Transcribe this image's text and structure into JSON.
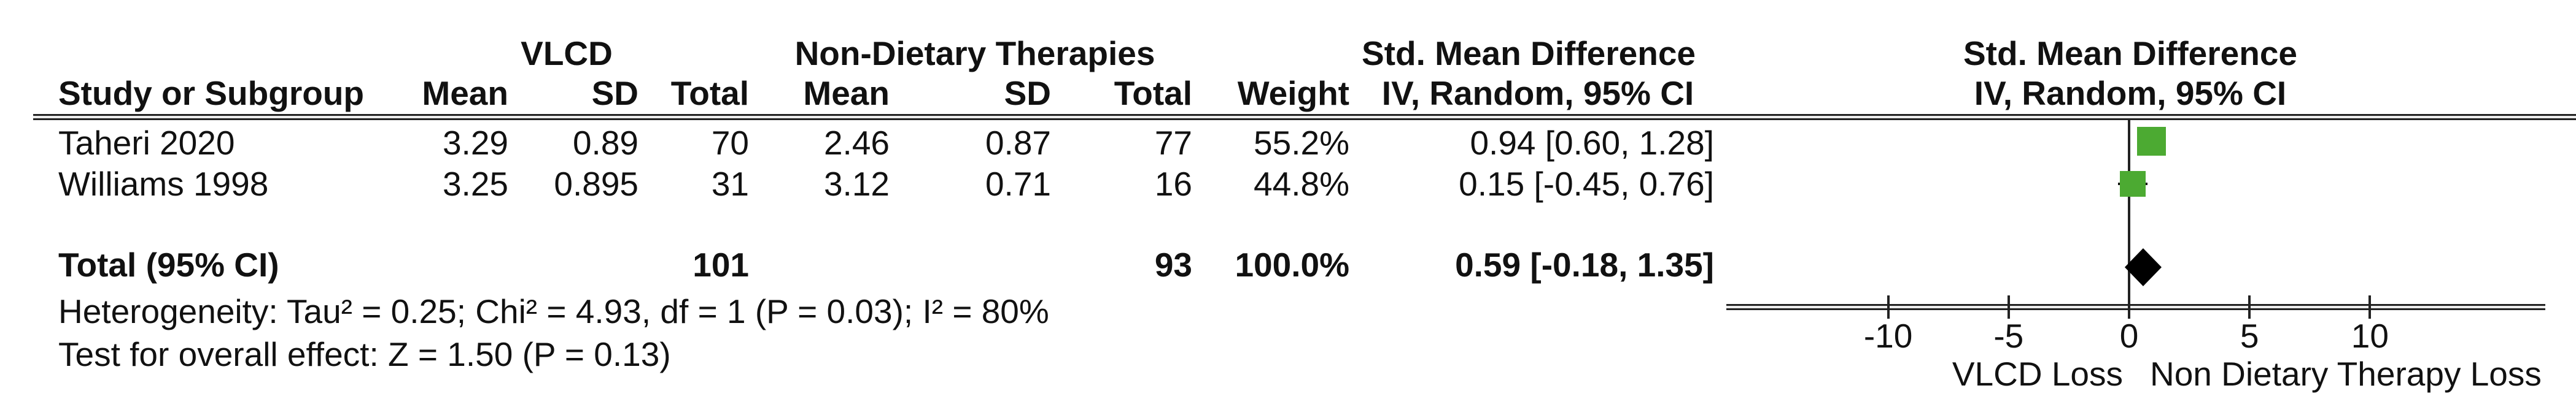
{
  "colors": {
    "marker_green": "#4caa32",
    "diamond_black": "#000000",
    "line_dark": "#222222",
    "text": "#111111",
    "background": "#ffffff"
  },
  "table": {
    "group_headers": {
      "vlcd": "VLCD",
      "non_dietary": "Non-Dietary Therapies",
      "smd": "Std. Mean Difference"
    },
    "col_headers": {
      "study": "Study or Subgroup",
      "mean1": "Mean",
      "sd1": "SD",
      "total1": "Total",
      "mean2": "Mean",
      "sd2": "SD",
      "total2": "Total",
      "weight": "Weight",
      "iv": "IV, Random, 95% CI"
    },
    "rows": [
      {
        "name": "Taheri 2020",
        "mean1": "3.29",
        "sd1": "0.89",
        "total1": "70",
        "mean2": "2.46",
        "sd2": "0.87",
        "total2": "77",
        "weight": "55.2%",
        "ci": "0.94 [0.60, 1.28]"
      },
      {
        "name": "Williams 1998",
        "mean1": "3.25",
        "sd1": "0.895",
        "total1": "31",
        "mean2": "3.12",
        "sd2": "0.71",
        "total2": "16",
        "weight": "44.8%",
        "ci": "0.15 [-0.45, 0.76]"
      }
    ],
    "total_row": {
      "label": "Total (95% CI)",
      "total1": "101",
      "total2": "93",
      "weight": "100.0%",
      "ci": "0.59 [-0.18, 1.35]"
    },
    "footnotes": {
      "heterogeneity": "Heterogeneity: Tau² = 0.25; Chi² = 4.93, df = 1 (P = 0.03); I² = 80%",
      "overall_effect": "Test for overall effect: Z = 1.50 (P = 0.13)"
    }
  },
  "plot": {
    "header_line1": "Std. Mean Difference",
    "header_line2": "IV, Random, 95% CI",
    "axis_label_left": "VLCD Loss",
    "axis_label_right": "Non Dietary Therapy Loss"
  },
  "chart_data": {
    "type": "forest",
    "title": "",
    "effect_measure": "Std. Mean Difference",
    "model": "IV, Random, 95% CI",
    "x_axis": {
      "ticks": [
        -10,
        -5,
        0,
        5,
        10
      ],
      "range_shown": [
        -16.5,
        17.3
      ],
      "label_left": "VLCD Loss",
      "label_right": "Non Dietary Therapy Loss"
    },
    "studies": [
      {
        "name": "Taheri 2020",
        "mean1": 3.29,
        "sd1": 0.89,
        "n1": 70,
        "mean2": 2.46,
        "sd2": 0.87,
        "n2": 77,
        "weight_pct": 55.2,
        "smd": 0.94,
        "ci_low": 0.6,
        "ci_high": 1.28
      },
      {
        "name": "Williams 1998",
        "mean1": 3.25,
        "sd1": 0.895,
        "n1": 31,
        "mean2": 3.12,
        "sd2": 0.71,
        "n2": 16,
        "weight_pct": 44.8,
        "smd": 0.15,
        "ci_low": -0.45,
        "ci_high": 0.76
      }
    ],
    "total": {
      "label": "Total (95% CI)",
      "n1": 101,
      "n2": 93,
      "weight_pct": 100.0,
      "smd": 0.59,
      "ci_low": -0.18,
      "ci_high": 1.35
    },
    "heterogeneity": {
      "tau2": 0.25,
      "chi2": 4.93,
      "df": 1,
      "p": 0.03,
      "i2_pct": 80
    },
    "overall_effect": {
      "z": 1.5,
      "p": 0.13
    }
  }
}
